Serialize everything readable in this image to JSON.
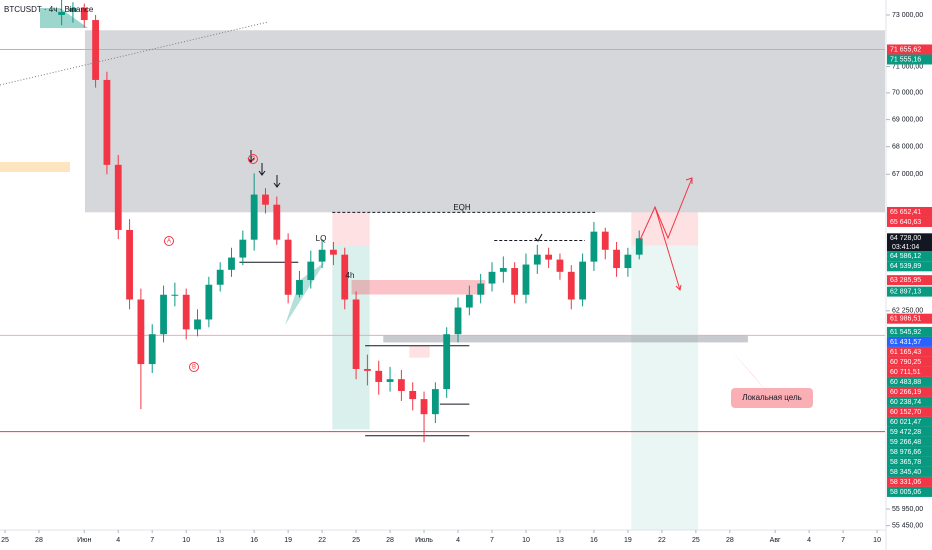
{
  "chart_data": {
    "type": "candlestick",
    "title": "BTCUSDT · 4ч · Binance",
    "log_scale": true,
    "up_color": "#089981",
    "down_color": "#f23645",
    "x": [
      5,
      6,
      7,
      8,
      9,
      10,
      11,
      12,
      13,
      14,
      15,
      16,
      17,
      18,
      19,
      20,
      21,
      22,
      23,
      24,
      25,
      26,
      27,
      28,
      29,
      30,
      31,
      32,
      33,
      34,
      35,
      36,
      37,
      38,
      39,
      40,
      41,
      42,
      43,
      44,
      45,
      46,
      47,
      48,
      49,
      50,
      51,
      52,
      53,
      54,
      55,
      56
    ],
    "open": [
      73000,
      73120,
      73280,
      72800,
      70490,
      67340,
      65020,
      62630,
      60490,
      61470,
      62790,
      62790,
      61630,
      61960,
      63130,
      63640,
      64060,
      64680,
      66270,
      65910,
      64680,
      62790,
      63290,
      63920,
      64330,
      64160,
      62630,
      60330,
      60270,
      59910,
      60000,
      59620,
      59360,
      58880,
      59680,
      61470,
      62360,
      62790,
      63170,
      63570,
      63700,
      62790,
      63820,
      64160,
      63990,
      63570,
      62630,
      63920,
      64960,
      64330,
      63700,
      64160
    ],
    "high": [
      73590,
      73500,
      73450,
      73000,
      70800,
      67700,
      65400,
      63000,
      61800,
      63100,
      63200,
      63000,
      62300,
      63400,
      63900,
      64400,
      65000,
      67030,
      66500,
      66200,
      64900,
      63600,
      64300,
      64700,
      64600,
      64400,
      62900,
      60800,
      60600,
      60400,
      60300,
      59900,
      59600,
      59900,
      61700,
      62700,
      63100,
      63500,
      63900,
      64100,
      63900,
      64200,
      64500,
      64400,
      64200,
      63800,
      64200,
      65300,
      65100,
      64600,
      64400,
      65000
    ],
    "low": [
      72600,
      72700,
      72500,
      70200,
      67000,
      64700,
      62300,
      59040,
      60200,
      61200,
      62400,
      61300,
      61400,
      61700,
      62900,
      63400,
      63800,
      64300,
      65600,
      64500,
      62500,
      62700,
      63000,
      63700,
      63800,
      62300,
      60000,
      59800,
      59500,
      59600,
      59300,
      59000,
      58000,
      58600,
      59400,
      61200,
      62100,
      62500,
      62900,
      63200,
      62500,
      62500,
      63500,
      63700,
      63300,
      62300,
      62400,
      63600,
      64000,
      63400,
      63400,
      64000
    ],
    "close": [
      73120,
      73280,
      72800,
      70490,
      67340,
      65020,
      62630,
      60490,
      61470,
      62790,
      62790,
      61630,
      61960,
      63130,
      63640,
      64060,
      64680,
      66270,
      65910,
      64680,
      62790,
      63290,
      63920,
      64330,
      64160,
      62630,
      60330,
      60270,
      59910,
      60000,
      59620,
      59360,
      58880,
      59680,
      61470,
      62360,
      62790,
      63170,
      63570,
      63700,
      62790,
      63820,
      64160,
      63990,
      63570,
      62630,
      63920,
      64960,
      64330,
      63700,
      64160,
      64728
    ],
    "xlim": [
      -0.44,
      77.7
    ],
    "xticks": [
      {
        "value": 0,
        "label": "25"
      },
      {
        "value": 3,
        "label": "28"
      },
      {
        "value": 7,
        "label": "Июн"
      },
      {
        "value": 10,
        "label": "4"
      },
      {
        "value": 13,
        "label": "7"
      },
      {
        "value": 16,
        "label": "10"
      },
      {
        "value": 19,
        "label": "13"
      },
      {
        "value": 22,
        "label": "16"
      },
      {
        "value": 25,
        "label": "19"
      },
      {
        "value": 28,
        "label": "22"
      },
      {
        "value": 31,
        "label": "25"
      },
      {
        "value": 34,
        "label": "28"
      },
      {
        "value": 37,
        "label": "Июль"
      },
      {
        "value": 40,
        "label": "4"
      },
      {
        "value": 43,
        "label": "7"
      },
      {
        "value": 46,
        "label": "10"
      },
      {
        "value": 49,
        "label": "13"
      },
      {
        "value": 52,
        "label": "16"
      },
      {
        "value": 55,
        "label": "19"
      },
      {
        "value": 58,
        "label": "22"
      },
      {
        "value": 61,
        "label": "25"
      },
      {
        "value": 64,
        "label": "28"
      },
      {
        "value": 68,
        "label": "Авг"
      },
      {
        "value": 71,
        "label": "4"
      },
      {
        "value": 74,
        "label": "7"
      },
      {
        "value": 77,
        "label": "10"
      }
    ],
    "ylim": [
      55320,
      73590
    ],
    "yticks": [
      {
        "value": 73000,
        "label": "73 000,00"
      },
      {
        "value": 71000,
        "label": "71 000,00"
      },
      {
        "value": 70000,
        "label": "70 000,00"
      },
      {
        "value": 69000,
        "label": "69 000,00"
      },
      {
        "value": 68000,
        "label": "68 000,00"
      },
      {
        "value": 67000,
        "label": "67 000,00"
      },
      {
        "value": 62250,
        "label": "62 250,00"
      },
      {
        "value": 55950,
        "label": "55 950,00"
      },
      {
        "value": 55450,
        "label": "55 450,00"
      }
    ],
    "price_labels": [
      {
        "value": 71655.62,
        "label": "71 655,62",
        "color": "#f23645"
      },
      {
        "value": 71555.16,
        "label": "71 555,16",
        "color": "#089981"
      },
      {
        "value": 65652.41,
        "label": "65 652,41",
        "color": "#f23645"
      },
      {
        "value": 65640.63,
        "label": "65 640,63",
        "color": "#f23645"
      },
      {
        "value": 64728.0,
        "label": "64 728,00",
        "color": "#131722"
      },
      {
        "value": 64586.12,
        "label": "64 586,12",
        "color": "#089981"
      },
      {
        "value": 64539.89,
        "label": "64 539,89",
        "color": "#089981"
      },
      {
        "value": 63285.95,
        "label": "63 285,95",
        "color": "#f23645"
      },
      {
        "value": 62897.13,
        "label": "62 897,13",
        "color": "#089981"
      },
      {
        "value": 61986.51,
        "label": "61 986,51",
        "color": "#f23645"
      },
      {
        "value": 61545.92,
        "label": "61 545,92",
        "color": "#089981"
      },
      {
        "value": 61431.57,
        "label": "61 431,57",
        "color": "#2962ff"
      },
      {
        "value": 61165.43,
        "label": "61 165,43",
        "color": "#f23645"
      },
      {
        "value": 60790.25,
        "label": "60 790,25",
        "color": "#f23645"
      },
      {
        "value": 60711.51,
        "label": "60 711,51",
        "color": "#f23645"
      },
      {
        "value": 60483.88,
        "label": "60 483,88",
        "color": "#089981"
      },
      {
        "value": 60266.19,
        "label": "60 266,19",
        "color": "#f23645"
      },
      {
        "value": 60238.74,
        "label": "60 238,74",
        "color": "#089981"
      },
      {
        "value": 60152.7,
        "label": "60 152,70",
        "color": "#f23645"
      },
      {
        "value": 60021.47,
        "label": "60 021,47",
        "color": "#089981"
      },
      {
        "value": 59472.28,
        "label": "59 472,28",
        "color": "#089981"
      },
      {
        "value": 59266.48,
        "label": "59 266,48",
        "color": "#089981"
      },
      {
        "value": 58976.66,
        "label": "58 976,66",
        "color": "#089981"
      },
      {
        "value": 58365.78,
        "label": "58 365,78",
        "color": "#089981"
      },
      {
        "value": 58345.4,
        "label": "58 345,40",
        "color": "#089981"
      },
      {
        "value": 58331.06,
        "label": "58 331,06",
        "color": "#f23645"
      },
      {
        "value": 58005.06,
        "label": "58 005,06",
        "color": "#089981"
      }
    ],
    "countdown": "03:41:04",
    "zones": [
      {
        "x": [
          7.06,
          77.7
        ],
        "range": [
          65640,
          72400
        ],
        "color": "rgba(120,123,134,0.3)"
      },
      {
        "x": [
          28.9,
          32.2
        ],
        "range": [
          64480,
          65640
        ],
        "color": "rgba(242,54,69,0.15)"
      },
      {
        "x": [
          28.9,
          32.2
        ],
        "range": [
          58400,
          64480
        ],
        "color": "rgba(8,153,129,0.15)"
      },
      {
        "x": [
          30.6,
          42.4
        ],
        "range": [
          62800,
          63290
        ],
        "color": "rgba(242,54,69,0.3)"
      },
      {
        "x": [
          55.3,
          61.2
        ],
        "range": [
          64480,
          65640
        ],
        "color": "rgba(242,54,69,0.15)"
      },
      {
        "x": [
          55.3,
          61.2
        ],
        "range": [
          55320,
          64480
        ],
        "color": "rgba(8,153,129,0.09)"
      },
      {
        "x": [
          33.4,
          65.6
        ],
        "range": [
          61200,
          61430
        ],
        "color": "rgba(120,123,134,0.4)"
      },
      {
        "x": [
          35.7,
          37.5
        ],
        "range": [
          60700,
          61100
        ],
        "color": "rgba(242,54,69,0.15)"
      }
    ],
    "lines": [
      {
        "x": [
          -0.44,
          77.7
        ],
        "value": 71655.62,
        "color": "#b2b5be",
        "dash": ""
      },
      {
        "x": [
          -0.44,
          77.7
        ],
        "value": 61431.57,
        "color": "#f7a8ae",
        "dash": ""
      },
      {
        "x": [
          -0.44,
          77.7
        ],
        "value": 58331.06,
        "color": "#f23645",
        "dash": ""
      },
      {
        "x": [
          20.7,
          25.9
        ],
        "value": 63900,
        "color": "#131722",
        "dash": ""
      },
      {
        "x": [
          31.8,
          41
        ],
        "value": 61090,
        "color": "#131722",
        "dash": ""
      },
      {
        "x": [
          31.8,
          41
        ],
        "value": 58200,
        "color": "#131722",
        "dash": ""
      },
      {
        "x": [
          38.4,
          41
        ],
        "value": 59200,
        "color": "#131722",
        "dash": ""
      },
      {
        "x": [
          28.9,
          52.1
        ],
        "value": 65640,
        "color": "#131722",
        "dash": "3,2"
      },
      {
        "x": [
          43.2,
          51.2
        ],
        "value": 64650,
        "color": "#131722",
        "dash": "3,2"
      }
    ],
    "annotations": [
      "EQH",
      "LQ",
      "4h",
      "A",
      "B",
      "D",
      "Локальная цель"
    ]
  }
}
